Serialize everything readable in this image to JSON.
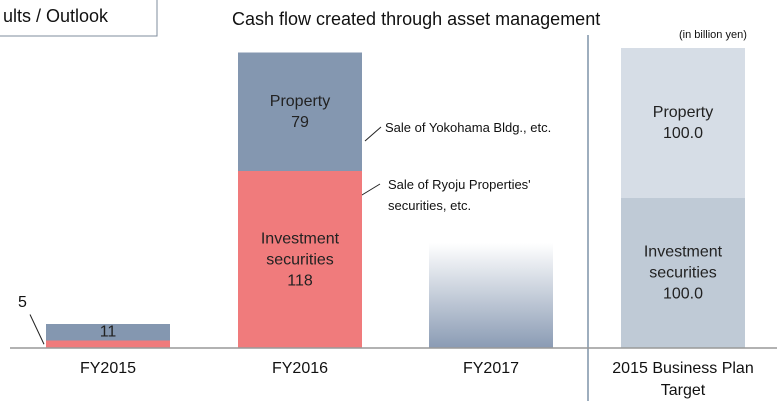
{
  "header": {
    "section": "ults / Outlook"
  },
  "chart_data": {
    "type": "stacked-bar",
    "title": "Cash flow created through asset management",
    "unit_label": "(in billion yen)",
    "categories": [
      "FY2015",
      "FY2016",
      "FY2017",
      "2015 Business Plan Target"
    ],
    "ylim": [
      0,
      200
    ],
    "series": [
      {
        "name": "Investment securities",
        "colors": [
          "#f07b7c",
          "#f07b7c",
          null,
          "#bfcad6"
        ],
        "values": [
          5,
          118,
          null,
          100.0
        ],
        "value_labels": [
          "5",
          "118",
          null,
          "100.0"
        ]
      },
      {
        "name": "Property",
        "colors": [
          "#8497b0",
          "#8497b0",
          null,
          "#d6dde6"
        ],
        "values": [
          11,
          79,
          null,
          100.0
        ],
        "value_labels": [
          "11",
          "79",
          null,
          "100.0"
        ]
      },
      {
        "color": "#8a9bb4",
        "gradient": true,
        "values": [
          null,
          null,
          70,
          null
        ]
      }
    ],
    "annotations": [
      {
        "text": "Sale of Yokohama Bldg., etc."
      },
      {
        "text": "Sale of Ryoju Properties' securities, etc."
      }
    ]
  }
}
